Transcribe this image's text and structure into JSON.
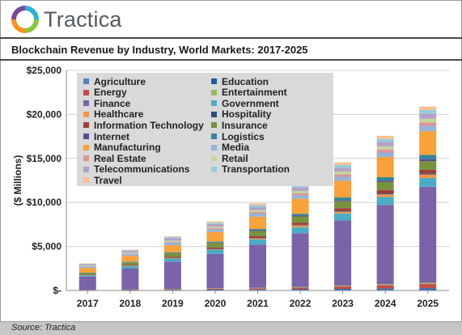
{
  "brand": {
    "name": "Tractica"
  },
  "source": "Source: Tractica",
  "chart_data": {
    "type": "bar",
    "stacked": true,
    "title": "Blockchain Revenue by Industry, World Markets: 2017-2025",
    "xlabel": "",
    "ylabel": "($ Millions)",
    "ylim": [
      0,
      25000
    ],
    "yticks": [
      0,
      5000,
      10000,
      15000,
      20000,
      25000
    ],
    "ytick_labels": [
      "$-",
      "$5,000",
      "$10,000",
      "$15,000",
      "$20,000",
      "$25,000"
    ],
    "grid": true,
    "legend_position": "top-left",
    "categories": [
      "2017",
      "2018",
      "2019",
      "2020",
      "2021",
      "2022",
      "2023",
      "2024",
      "2025"
    ],
    "series": [
      {
        "name": "Agriculture",
        "color": "#4f81bd",
        "values": [
          20,
          30,
          40,
          50,
          60,
          80,
          100,
          120,
          140
        ]
      },
      {
        "name": "Education",
        "color": "#1f5d99",
        "values": [
          10,
          20,
          30,
          40,
          50,
          60,
          80,
          100,
          120
        ]
      },
      {
        "name": "Energy",
        "color": "#c0504d",
        "values": [
          30,
          50,
          80,
          110,
          150,
          200,
          300,
          400,
          500
        ]
      },
      {
        "name": "Entertainment",
        "color": "#9bbb59",
        "values": [
          10,
          20,
          30,
          40,
          50,
          60,
          80,
          100,
          120
        ]
      },
      {
        "name": "Finance",
        "color": "#7a63a8",
        "values": [
          1500,
          2400,
          3100,
          3900,
          4900,
          6100,
          7400,
          9000,
          10900
        ]
      },
      {
        "name": "Government",
        "color": "#4bacc6",
        "values": [
          150,
          250,
          350,
          500,
          600,
          700,
          800,
          900,
          1000
        ]
      },
      {
        "name": "Healthcare",
        "color": "#f79646",
        "values": [
          20,
          30,
          40,
          60,
          100,
          200,
          200,
          300,
          400
        ]
      },
      {
        "name": "Hospitality",
        "color": "#2c4d75",
        "values": [
          10,
          20,
          30,
          40,
          50,
          60,
          80,
          100,
          120
        ]
      },
      {
        "name": "Information Technology",
        "color": "#a13d3a",
        "values": [
          50,
          80,
          120,
          150,
          200,
          250,
          300,
          400,
          400
        ]
      },
      {
        "name": "Insurance",
        "color": "#77933c",
        "values": [
          200,
          300,
          400,
          500,
          600,
          700,
          800,
          900,
          1000
        ]
      },
      {
        "name": "Internet",
        "color": "#5f4b8b",
        "values": [
          20,
          30,
          40,
          60,
          80,
          100,
          120,
          150,
          200
        ]
      },
      {
        "name": "Logistics",
        "color": "#31859c",
        "values": [
          30,
          50,
          80,
          100,
          150,
          200,
          300,
          400,
          500
        ]
      },
      {
        "name": "Manufacturing",
        "color": "#f9a13a",
        "values": [
          500,
          650,
          800,
          1100,
          1400,
          1700,
          1900,
          2300,
          2700
        ]
      },
      {
        "name": "Media",
        "color": "#95b3d7",
        "values": [
          150,
          200,
          300,
          300,
          350,
          400,
          450,
          500,
          600
        ]
      },
      {
        "name": "Real Estate",
        "color": "#d99694",
        "values": [
          50,
          70,
          100,
          150,
          200,
          250,
          300,
          350,
          400
        ]
      },
      {
        "name": "Retail",
        "color": "#c3d69b",
        "values": [
          80,
          100,
          120,
          150,
          200,
          250,
          300,
          350,
          400
        ]
      },
      {
        "name": "Telecommunications",
        "color": "#b3a2c7",
        "values": [
          150,
          200,
          300,
          300,
          350,
          400,
          450,
          500,
          600
        ]
      },
      {
        "name": "Transportation",
        "color": "#93cddd",
        "values": [
          50,
          70,
          100,
          150,
          200,
          250,
          300,
          350,
          400
        ]
      },
      {
        "name": "Travel",
        "color": "#fac090",
        "values": [
          50,
          70,
          100,
          150,
          200,
          250,
          300,
          350,
          400
        ]
      }
    ]
  }
}
